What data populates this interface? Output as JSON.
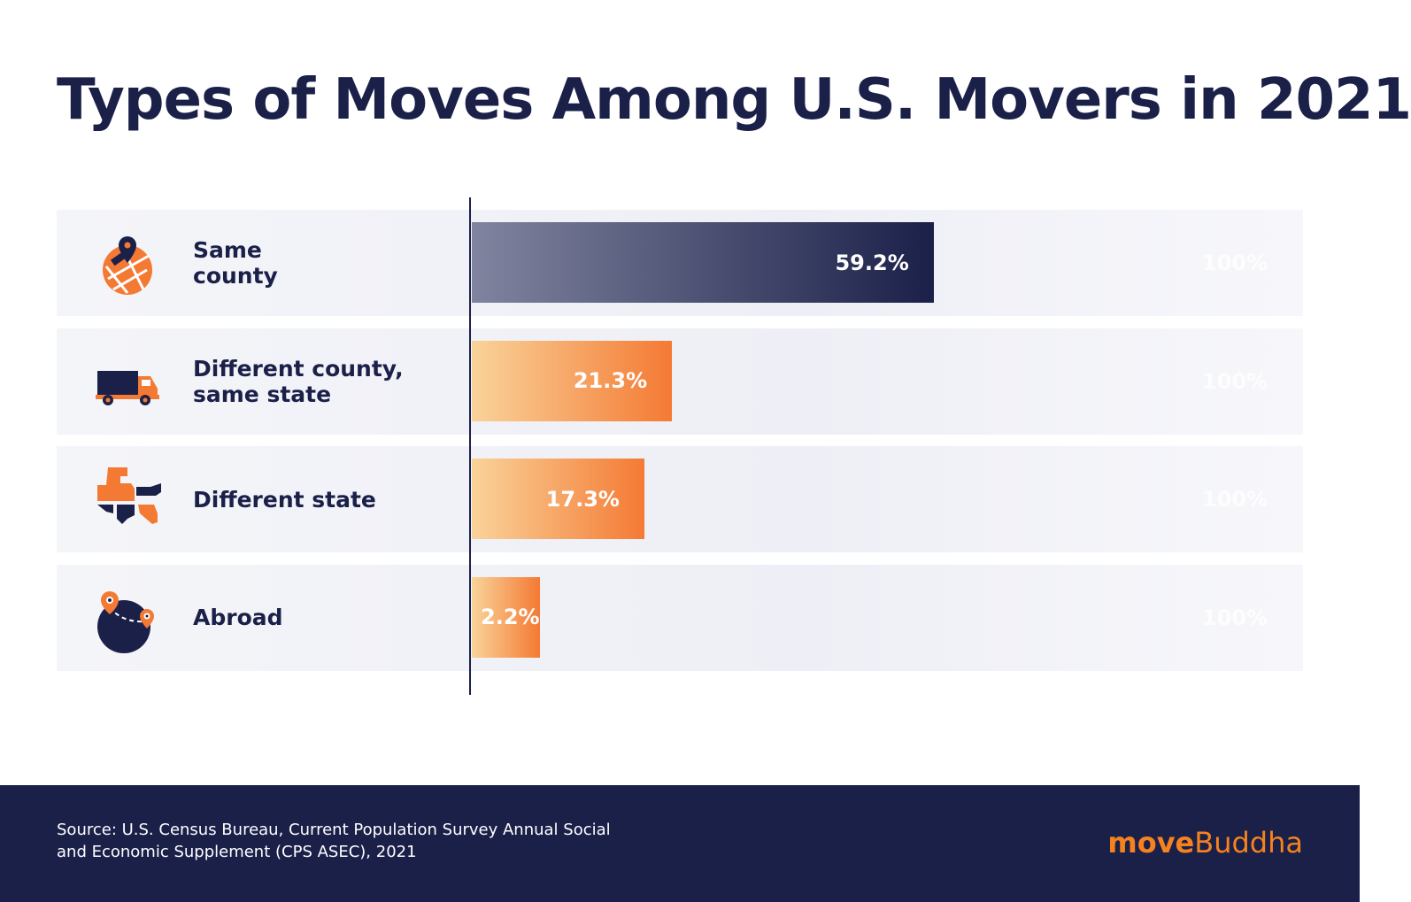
{
  "chart_data": {
    "type": "bar",
    "orientation": "horizontal",
    "title": "Types of Moves Among U.S. Movers in 2021",
    "categories": [
      "Same county",
      "Different county, same state",
      "Different state",
      "Abroad"
    ],
    "labels": [
      "Same\ncounty",
      "Different county,\nsame state",
      "Different state",
      "Abroad"
    ],
    "values": [
      59.2,
      21.3,
      17.3,
      2.2
    ],
    "value_labels": [
      "59.2%",
      "21.3%",
      "17.3%",
      "2.2%"
    ],
    "max_label": "100%",
    "xlim": [
      0,
      100
    ],
    "icons": [
      "map-pin-icon",
      "moving-truck-icon",
      "us-map-icon",
      "globe-pins-icon"
    ],
    "colors": {
      "primary": [
        "#80849f",
        "#1b2049"
      ],
      "secondary": [
        "#f9d39a",
        "#f47a34"
      ]
    }
  },
  "footer": {
    "source": "Source: U.S. Census Bureau, Current Population Survey Annual Social\nand Economic Supplement (CPS ASEC), 2021",
    "logo_bold": "move",
    "logo_light": "Buddha"
  }
}
